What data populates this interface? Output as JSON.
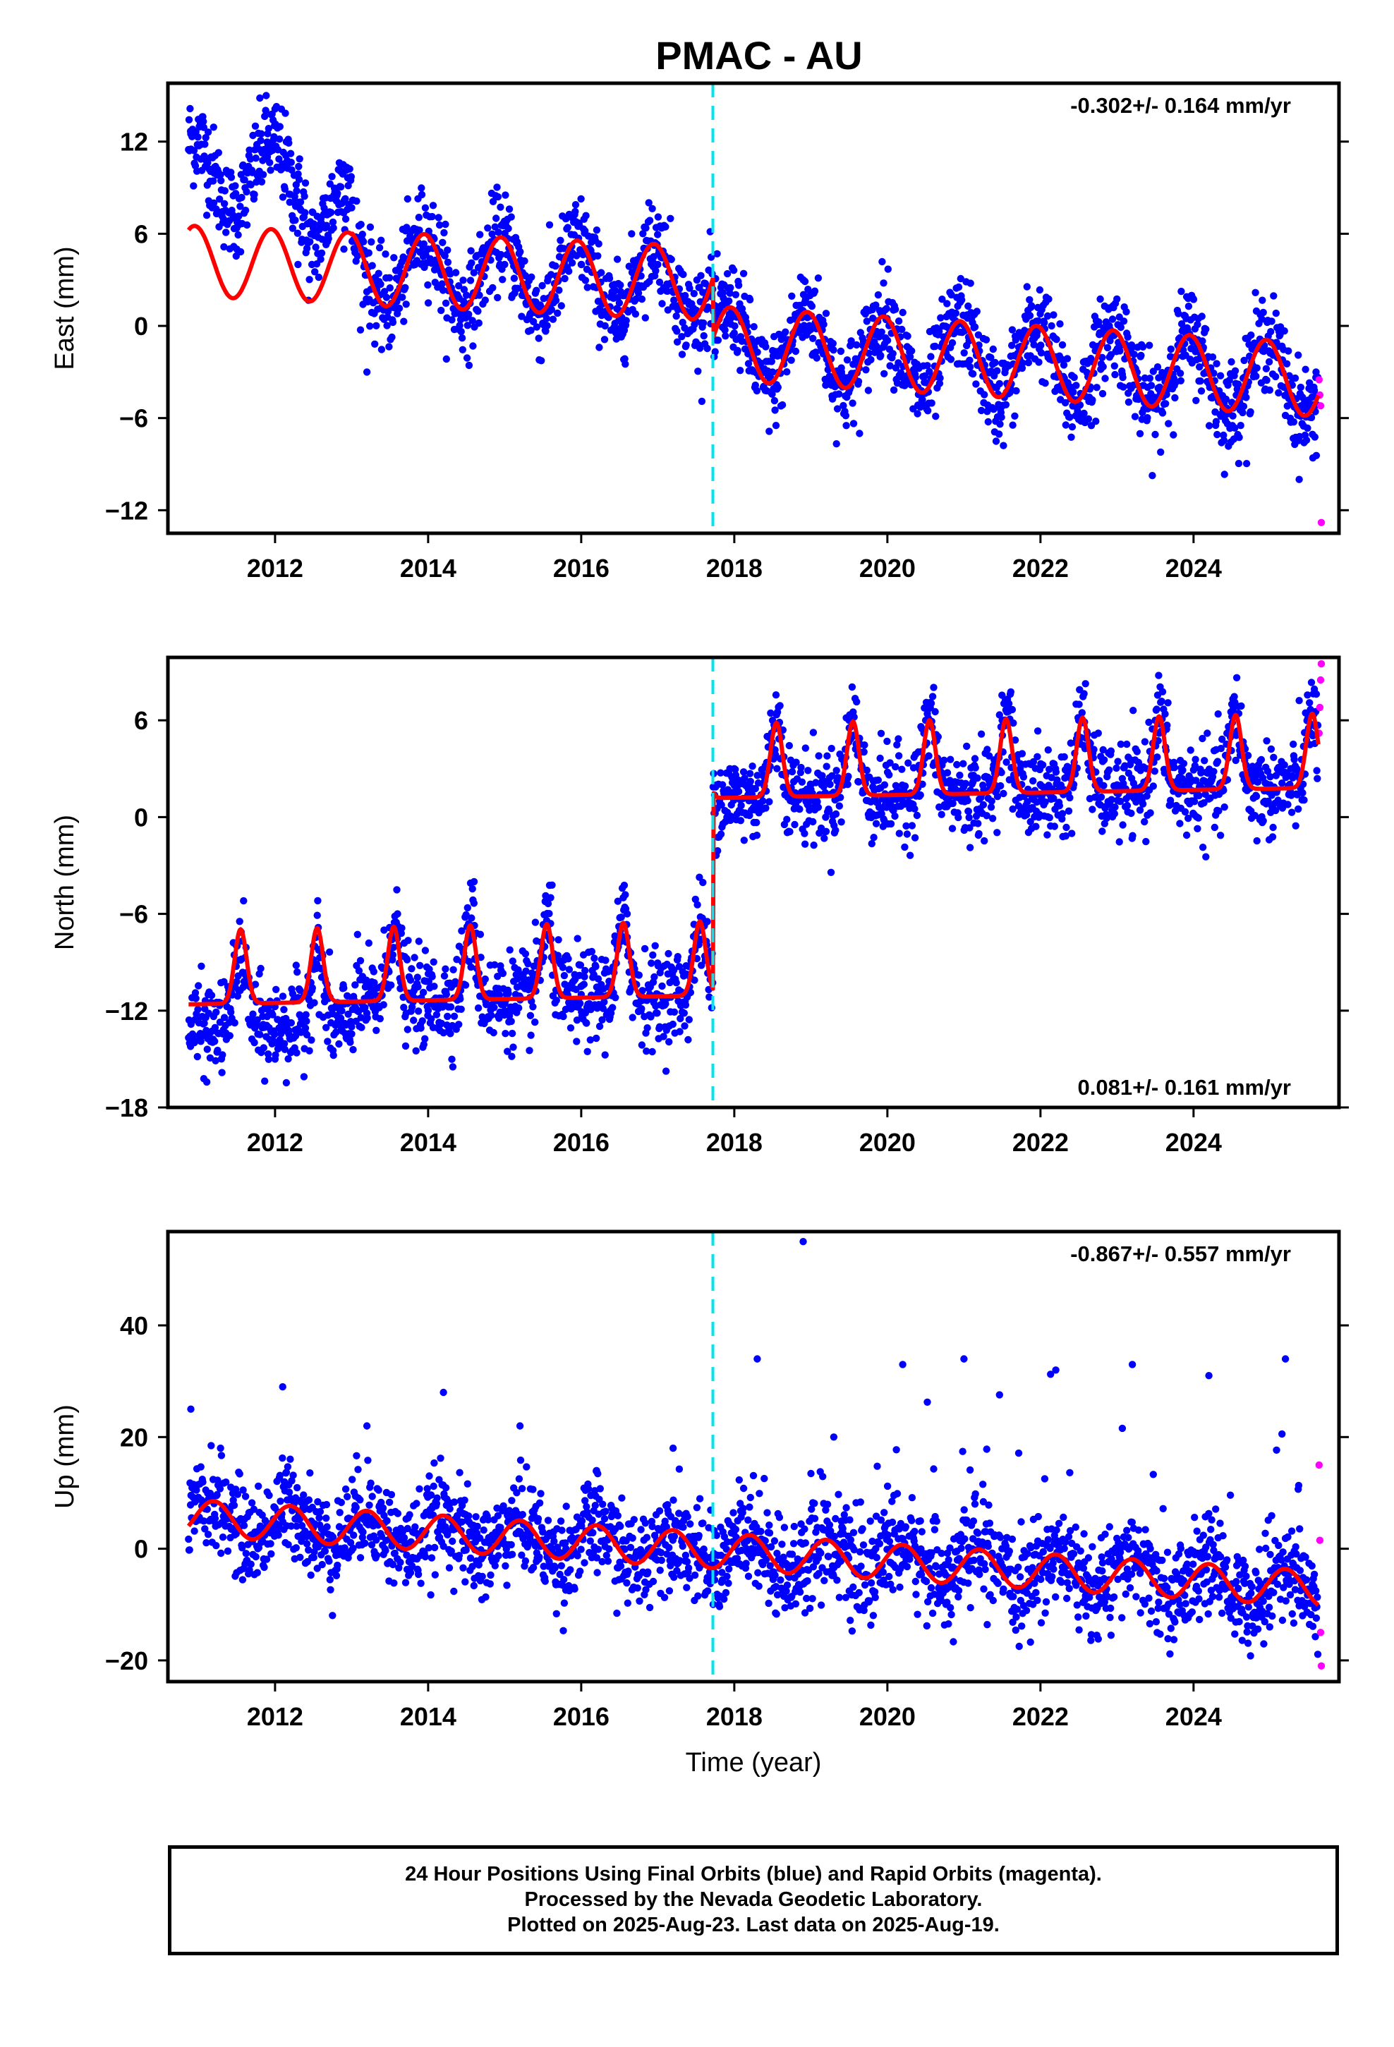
{
  "title": "PMAC - AU",
  "xlabel": "Time (year)",
  "footer": {
    "line1": "24 Hour Positions Using Final Orbits (blue) and Rapid Orbits (magenta).",
    "line2": "Processed by the Nevada Geodetic Laboratory.",
    "line3": "Plotted on 2025-Aug-23. Last data on 2025-Aug-19."
  },
  "colors": {
    "final_orbits": "#0000ff",
    "rapid_orbits": "#ff00ff",
    "model_fit": "#ff0000",
    "equipment_change": "#00e5ee"
  },
  "chart_data": [
    {
      "type": "scatter",
      "ylabel": "East (mm)",
      "rate_label": "-0.302+/- 0.164 mm/yr",
      "rate_position": "top-right",
      "xlim": [
        2010.6,
        2025.9
      ],
      "ylim": [
        -13.5,
        15.8
      ],
      "x_ticks": [
        2012,
        2014,
        2016,
        2018,
        2020,
        2022,
        2024
      ],
      "y_ticks": [
        -12,
        -6,
        0,
        6,
        12
      ],
      "equipment_change": 2017.72,
      "data_range": [
        2010.87,
        2025.63
      ],
      "grid": false,
      "series": [
        {
          "name": "Final Orbits",
          "markers": "points",
          "x": [
            2010.9,
            2011.2,
            2011.5,
            2011.9,
            2012.3,
            2012.6,
            2012.9,
            2013.2,
            2013.6,
            2014.0,
            2014.5,
            2015.0,
            2015.5,
            2016.0,
            2016.5,
            2017.0,
            2017.5,
            2017.7,
            2018.1,
            2018.5,
            2018.9,
            2019.4,
            2019.9,
            2020.4,
            2020.9,
            2021.4,
            2021.9,
            2022.4,
            2022.9,
            2023.4,
            2023.9,
            2024.4,
            2024.9,
            2025.4,
            2025.6
          ],
          "y": [
            12.5,
            8,
            5,
            11,
            4,
            7,
            5,
            -3,
            2,
            5,
            2,
            4,
            1,
            4,
            1,
            4,
            1,
            2,
            -1,
            -3,
            3,
            -3,
            1,
            -4,
            0,
            -4,
            0,
            -4,
            0,
            -4,
            -0.5,
            -5,
            -1,
            -4,
            -3
          ]
        },
        {
          "name": "Rapid Orbits",
          "markers": "points",
          "x": [
            2025.64,
            2025.65,
            2025.66,
            2025.67
          ],
          "y": [
            -3.5,
            -4.5,
            -5.2,
            -12.8
          ]
        },
        {
          "name": "Model",
          "markers": "line"
        }
      ],
      "model": {
        "offset_2018": 2.7,
        "trend_mm_yr": -0.302,
        "annual": 2.4,
        "semiannual": 0.4,
        "step_at_equipment_change": -2.4
      }
    },
    {
      "type": "scatter",
      "ylabel": "North (mm)",
      "rate_label": "0.081+/- 0.161 mm/yr",
      "rate_position": "bottom-right",
      "xlim": [
        2010.6,
        2025.9
      ],
      "ylim": [
        -18,
        9.9
      ],
      "x_ticks": [
        2012,
        2014,
        2016,
        2018,
        2020,
        2022,
        2024
      ],
      "y_ticks": [
        -18,
        -12,
        -6,
        0,
        6
      ],
      "equipment_change": 2017.72,
      "data_range": [
        2010.87,
        2025.63
      ],
      "grid": false,
      "series": [
        {
          "name": "Final Orbits",
          "markers": "points",
          "x": [
            2010.9,
            2011.5,
            2012.0,
            2012.5,
            2013.0,
            2013.6,
            2014.0,
            2014.6,
            2015.0,
            2015.6,
            2016.0,
            2016.6,
            2017.0,
            2017.5,
            2017.7,
            2018.0,
            2018.5,
            2019.0,
            2019.5,
            2020.0,
            2020.5,
            2021.0,
            2021.5,
            2022.0,
            2022.5,
            2023.0,
            2023.5,
            2024.0,
            2024.5,
            2025.0,
            2025.5
          ],
          "y": [
            -14,
            -8,
            -15,
            -8,
            -13,
            -6,
            -12,
            -4,
            -12,
            -5,
            -11,
            -6,
            -11,
            -8,
            -9,
            3,
            6,
            2,
            6,
            1,
            6,
            2,
            6,
            1,
            6,
            2,
            6,
            1,
            7,
            2,
            6
          ]
        },
        {
          "name": "Rapid Orbits",
          "markers": "points",
          "x": [
            2025.64,
            2025.65,
            2025.66,
            2025.67
          ],
          "y": [
            5.2,
            6.8,
            8.5,
            9.5
          ]
        },
        {
          "name": "Model",
          "markers": "line"
        }
      ],
      "model": {
        "offset_2018": 2.8,
        "trend_mm_yr": 0.081,
        "annual": 2.2,
        "semiannual": 1.3,
        "step_at_equipment_change": 13.2
      }
    },
    {
      "type": "scatter",
      "ylabel": "Up (mm)",
      "rate_label": "-0.867+/- 0.557 mm/yr",
      "rate_position": "top-right",
      "xlim": [
        2010.6,
        2025.9
      ],
      "ylim": [
        -23.8,
        56.8
      ],
      "x_ticks": [
        2012,
        2014,
        2016,
        2018,
        2020,
        2022,
        2024
      ],
      "y_ticks": [
        -20,
        0,
        20,
        40
      ],
      "equipment_change": 2017.72,
      "data_range": [
        2010.87,
        2025.63
      ],
      "grid": false,
      "series": [
        {
          "name": "Final Orbits",
          "markers": "points",
          "x": [
            2010.9,
            2011.5,
            2012.1,
            2012.6,
            2013.2,
            2013.8,
            2014.2,
            2014.8,
            2015.2,
            2015.8,
            2016.2,
            2016.8,
            2017.2,
            2017.7,
            2018.3,
            2018.9,
            2019.3,
            2019.9,
            2020.2,
            2020.8,
            2021.0,
            2021.6,
            2022.2,
            2022.6,
            2023.2,
            2023.6,
            2024.2,
            2024.6,
            2025.2,
            2025.5
          ],
          "y": [
            25,
            4,
            29,
            2,
            22,
            3,
            28,
            1,
            22,
            0,
            14,
            -1,
            18,
            -3,
            34,
            55,
            20,
            -3,
            33,
            -2,
            34,
            -8,
            32,
            -7,
            33,
            -8,
            31,
            -9,
            34,
            -8
          ]
        },
        {
          "name": "Rapid Orbits",
          "markers": "points",
          "x": [
            2025.64,
            2025.65,
            2025.66,
            2025.67
          ],
          "y": [
            15,
            1.5,
            -15,
            -21
          ]
        },
        {
          "name": "Model",
          "markers": "line"
        }
      ],
      "model": {
        "offset_2018": 0.5,
        "trend_mm_yr": -0.867,
        "annual": 3.9,
        "semiannual": 0.5,
        "step_at_equipment_change": 0
      }
    }
  ]
}
